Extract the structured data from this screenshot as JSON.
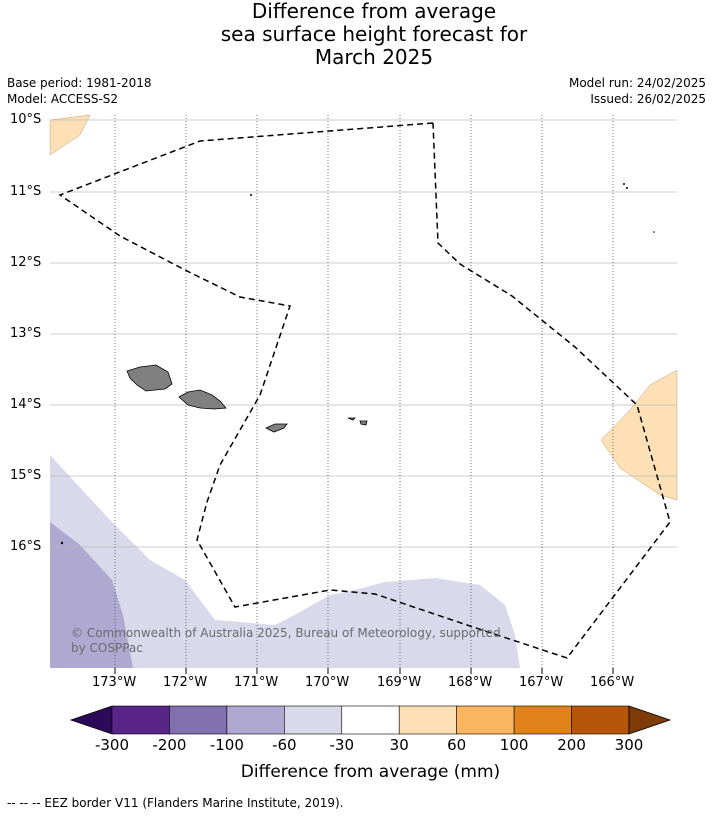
{
  "title_lines": [
    "Difference from average",
    "sea surface height forecast for",
    "March 2025"
  ],
  "meta": {
    "base_period": "Base period: 1981-2018",
    "model": "Model: ACCESS-S2",
    "model_run": "Model run: 24/02/2025",
    "issued": "Issued: 26/02/2025"
  },
  "axes": {
    "lat_labels": [
      "10°S",
      "11°S",
      "12°S",
      "13°S",
      "14°S",
      "15°S",
      "16°S"
    ],
    "lon_labels": [
      "173°W",
      "172°W",
      "171°W",
      "170°W",
      "169°W",
      "168°W",
      "167°W",
      "166°W"
    ]
  },
  "credit_lines": [
    "© Commonwealth of Australia 2025, Bureau of Meteorology, supported",
    "by COSPPac"
  ],
  "colorbar": {
    "ticks": [
      "-300",
      "-200",
      "-100",
      "-60",
      "-30",
      "30",
      "60",
      "100",
      "200",
      "300"
    ],
    "colors": [
      "#2d0a59",
      "#5a2589",
      "#8270ae",
      "#afa8d1",
      "#d9d9eb",
      "#ffffff",
      "#fde0b6",
      "#fbb55f",
      "#e1821b",
      "#b55609",
      "#7f3b08"
    ],
    "label": "Difference from average (mm)"
  },
  "footnote": "--  --  -- EEZ border V11 (Flanders Marine Institute, 2019).",
  "colors": {
    "light_purple": "#d9d9eb",
    "mid_purple": "#afa8d1",
    "light_orange": "#fde0b6",
    "land": "#808080"
  }
}
